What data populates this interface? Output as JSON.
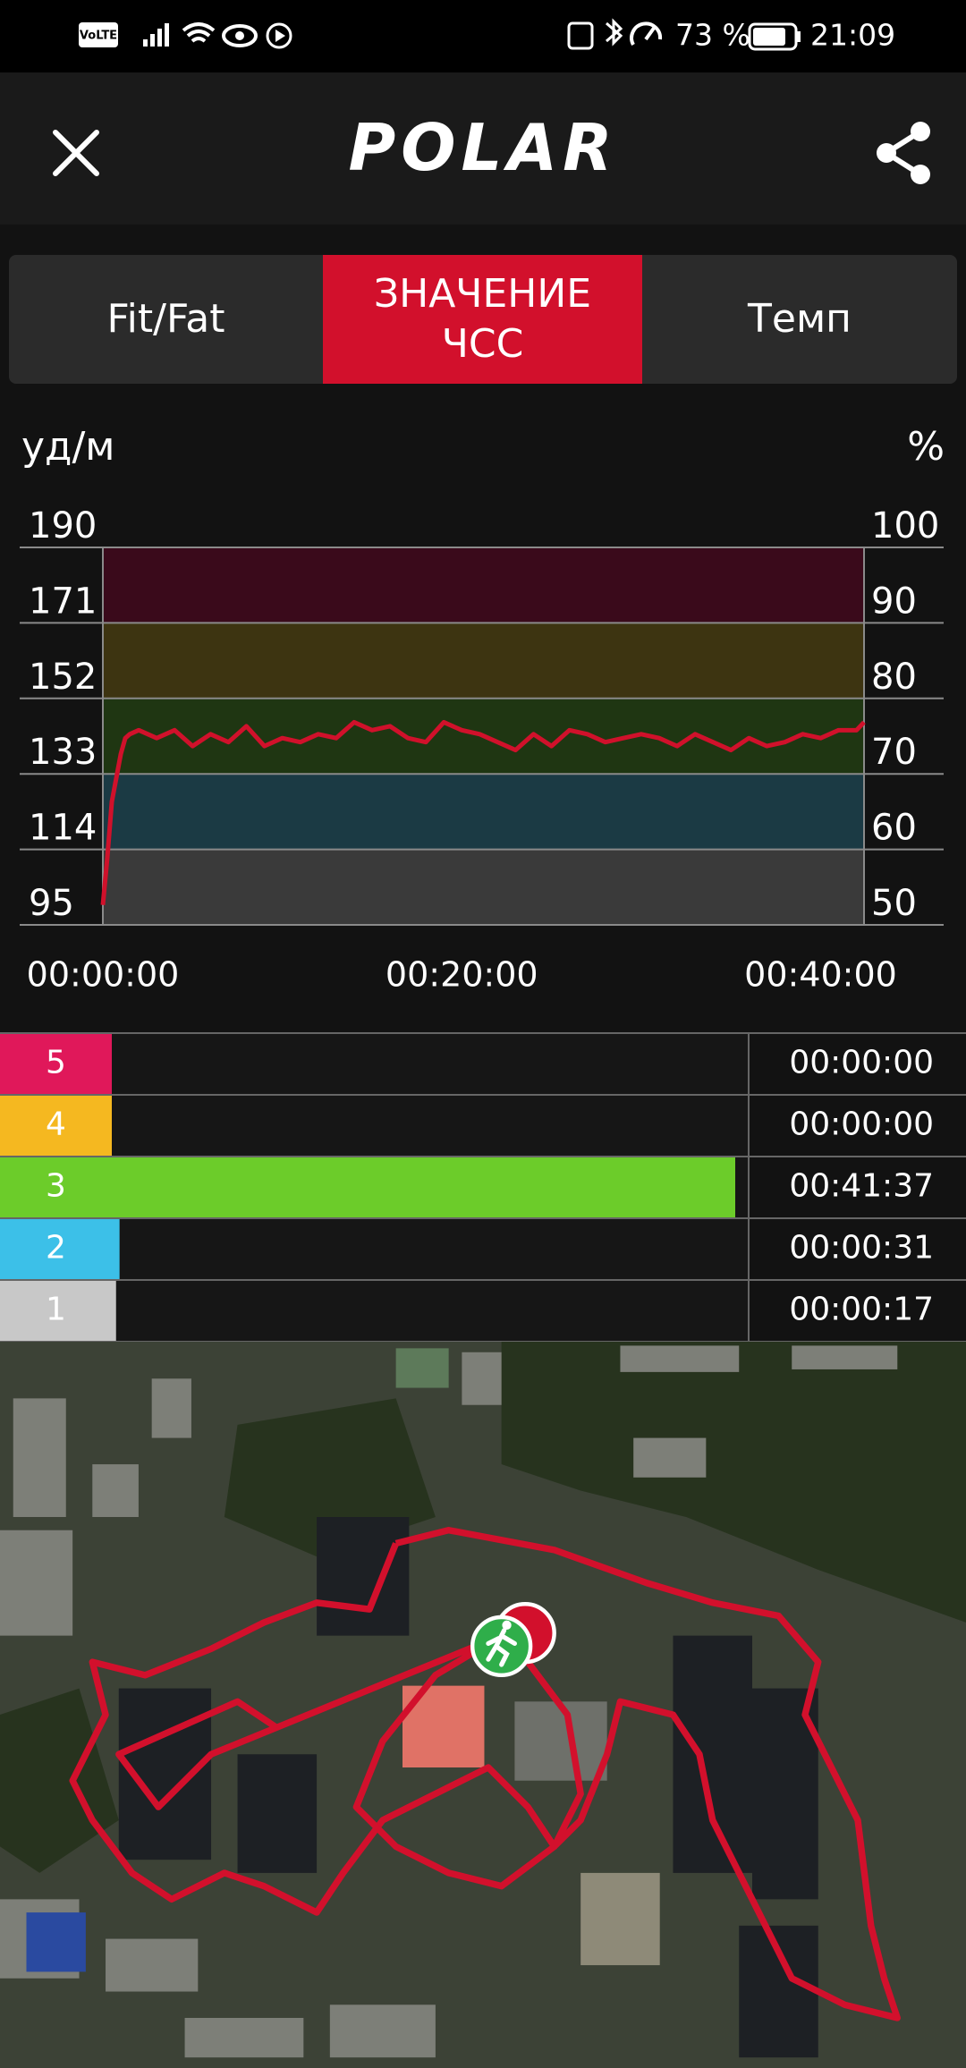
{
  "status_bar": {
    "network": "VoLTE",
    "battery": "73 %",
    "time": "21:09"
  },
  "header": {
    "logo": "POLAR"
  },
  "tabs": [
    "Fit/Fat",
    "ЗНАЧЕНИЕ ЧСС",
    "Темп"
  ],
  "active_tab": 1,
  "chart": {
    "type": "line",
    "y_unit": "уд/м",
    "y2_unit": "%",
    "x": [
      0,
      15,
      30,
      45,
      60,
      75,
      90,
      120,
      180,
      240,
      300,
      360,
      420,
      480,
      540,
      600,
      660,
      720,
      780,
      840,
      900,
      960,
      1020,
      1080,
      1140,
      1200,
      1260,
      1320,
      1380,
      1440,
      1500,
      1560,
      1620,
      1680,
      1740,
      1800,
      1860,
      1920,
      1980,
      2040,
      2100,
      2160,
      2220,
      2280,
      2340,
      2400,
      2460,
      2520,
      2545
    ],
    "series": [
      {
        "color": "#d0112b",
        "values": [
          100,
          112,
          126,
          132,
          138,
          142,
          143,
          144,
          142,
          144,
          140,
          143,
          141,
          145,
          140,
          142,
          141,
          143,
          142,
          146,
          144,
          145,
          142,
          141,
          146,
          144,
          143,
          141,
          139,
          143,
          140,
          144,
          143,
          141,
          142,
          143,
          142,
          140,
          143,
          141,
          139,
          142,
          140,
          141,
          143,
          142,
          144,
          144,
          146
        ]
      }
    ],
    "xlim": [
      0,
      2545
    ],
    "xticks": [
      {
        "value": 0,
        "label": "00:00:00"
      },
      {
        "value": 1200,
        "label": "00:20:00"
      },
      {
        "value": 2400,
        "label": "00:40:00"
      }
    ],
    "ylim": [
      95,
      190
    ],
    "yticks": [
      95,
      114,
      133,
      152,
      171,
      190
    ],
    "y2lim": [
      50,
      100
    ],
    "y2ticks": [
      50,
      60,
      70,
      80,
      90,
      100
    ],
    "band_colors": [
      "#3a3a3a",
      "#1b3a44",
      "#1f3612",
      "#3d3411",
      "#3a0a1b"
    ]
  },
  "zones": [
    {
      "zone": 5,
      "color": "#e0185a",
      "seconds": 0,
      "label": "00:00:00"
    },
    {
      "zone": 4,
      "color": "#f5b820",
      "seconds": 0,
      "label": "00:00:00"
    },
    {
      "zone": 3,
      "color": "#6ccc2a",
      "seconds": 2497,
      "label": "00:41:37"
    },
    {
      "zone": 2,
      "color": "#3cc0e8",
      "seconds": 31,
      "label": "00:00:31"
    },
    {
      "zone": 1,
      "color": "#c8c8c8",
      "seconds": 17,
      "label": "00:00:17"
    }
  ]
}
